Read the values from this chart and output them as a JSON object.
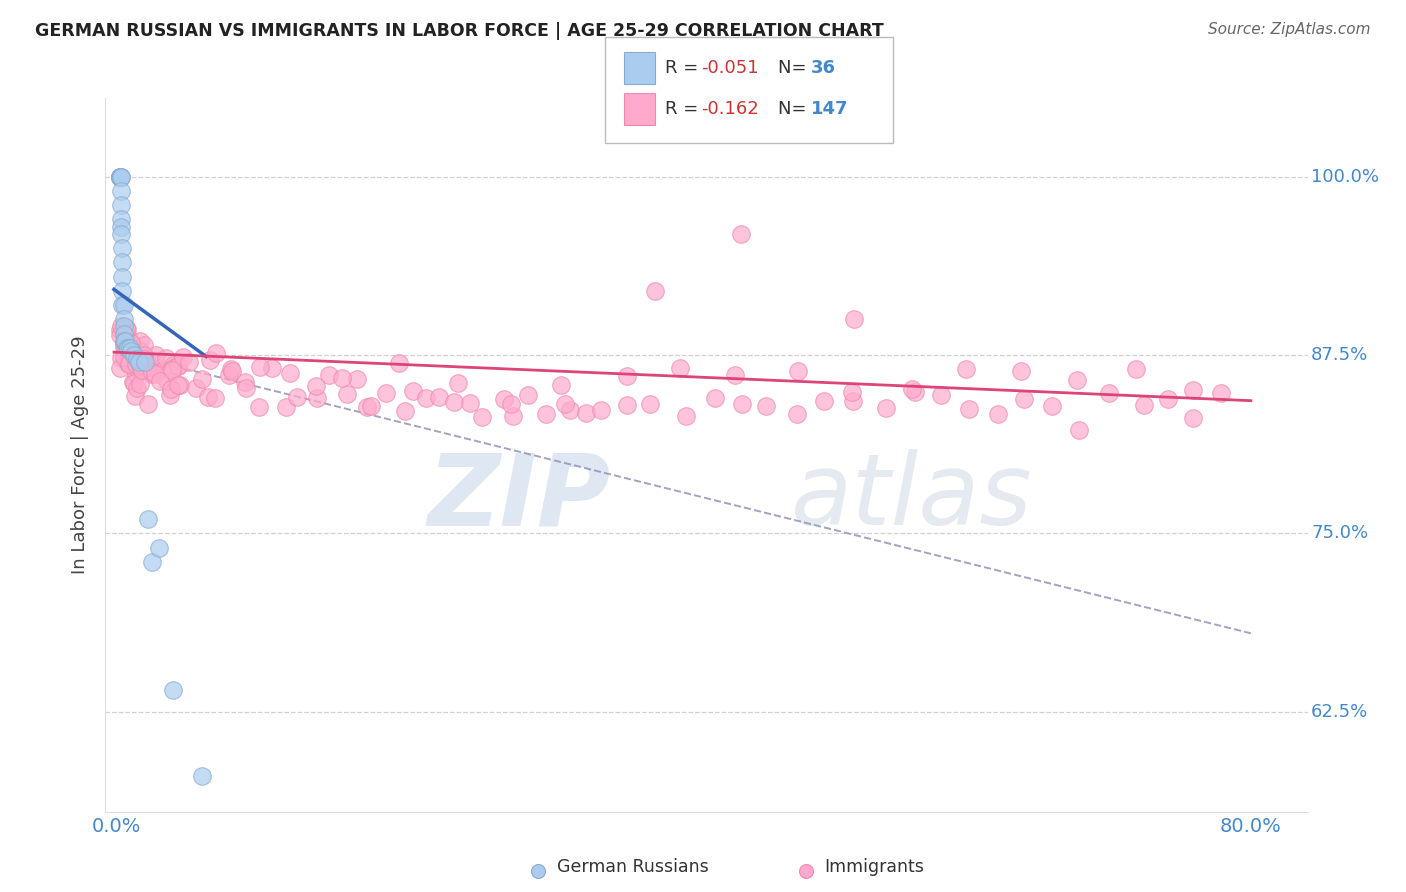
{
  "title": "GERMAN RUSSIAN VS IMMIGRANTS IN LABOR FORCE | AGE 25-29 CORRELATION CHART",
  "source": "Source: ZipAtlas.com",
  "ylabel": "In Labor Force | Age 25-29",
  "ytick_labels": [
    "62.5%",
    "75.0%",
    "87.5%",
    "100.0%"
  ],
  "ytick_values": [
    0.625,
    0.75,
    0.875,
    1.0
  ],
  "xtick_labels": [
    "0.0%",
    "80.0%"
  ],
  "xtick_values": [
    0.0,
    0.8
  ],
  "xlim": [
    -0.008,
    0.84
  ],
  "ylim": [
    0.555,
    1.055
  ],
  "blue_fill_color": "#aaccee",
  "blue_edge_color": "#88aacc",
  "pink_fill_color": "#ffaacc",
  "pink_edge_color": "#ee88aa",
  "blue_line_color": "#3366bb",
  "pink_line_color": "#dd4477",
  "dashed_line_color": "#9999bb",
  "title_color": "#222222",
  "source_color": "#666666",
  "axis_label_color": "#4488cc",
  "background_color": "#ffffff",
  "grid_color": "#cccccc",
  "legend_r1_val": "-0.051",
  "legend_n1_val": "36",
  "legend_r2_val": "-0.162",
  "legend_n2_val": "147",
  "bottom_legend_1": "German Russians",
  "bottom_legend_2": "Immigrants",
  "gr_x": [
    0.002,
    0.002,
    0.002,
    0.002,
    0.002,
    0.003,
    0.003,
    0.003,
    0.003,
    0.003,
    0.003,
    0.003,
    0.004,
    0.004,
    0.004,
    0.004,
    0.004,
    0.005,
    0.005,
    0.005,
    0.005,
    0.005,
    0.006,
    0.007,
    0.008,
    0.009,
    0.01,
    0.012,
    0.014,
    0.016,
    0.02,
    0.022,
    0.025,
    0.03,
    0.04,
    0.06
  ],
  "gr_y": [
    1.0,
    1.0,
    1.0,
    1.0,
    1.0,
    1.0,
    1.0,
    0.99,
    0.98,
    0.97,
    0.965,
    0.96,
    0.95,
    0.94,
    0.93,
    0.92,
    0.91,
    0.91,
    0.9,
    0.895,
    0.89,
    0.885,
    0.885,
    0.88,
    0.88,
    0.88,
    0.878,
    0.875,
    0.872,
    0.87,
    0.87,
    0.76,
    0.73,
    0.74,
    0.64,
    0.58
  ],
  "imm_x": [
    0.002,
    0.003,
    0.003,
    0.004,
    0.004,
    0.005,
    0.005,
    0.006,
    0.006,
    0.007,
    0.007,
    0.008,
    0.008,
    0.009,
    0.009,
    0.01,
    0.01,
    0.011,
    0.011,
    0.012,
    0.013,
    0.013,
    0.014,
    0.015,
    0.015,
    0.016,
    0.017,
    0.018,
    0.019,
    0.02,
    0.021,
    0.022,
    0.023,
    0.025,
    0.026,
    0.028,
    0.03,
    0.032,
    0.034,
    0.036,
    0.038,
    0.04,
    0.042,
    0.045,
    0.048,
    0.05,
    0.055,
    0.06,
    0.065,
    0.07,
    0.075,
    0.08,
    0.09,
    0.1,
    0.11,
    0.12,
    0.13,
    0.14,
    0.15,
    0.16,
    0.17,
    0.18,
    0.19,
    0.2,
    0.21,
    0.22,
    0.23,
    0.24,
    0.25,
    0.26,
    0.27,
    0.28,
    0.29,
    0.3,
    0.31,
    0.32,
    0.33,
    0.34,
    0.36,
    0.38,
    0.4,
    0.42,
    0.44,
    0.46,
    0.48,
    0.5,
    0.52,
    0.54,
    0.56,
    0.58,
    0.6,
    0.62,
    0.64,
    0.66,
    0.68,
    0.7,
    0.72,
    0.74,
    0.76,
    0.78,
    0.005,
    0.006,
    0.007,
    0.008,
    0.009,
    0.01,
    0.011,
    0.012,
    0.013,
    0.014,
    0.015,
    0.016,
    0.017,
    0.018,
    0.02,
    0.022,
    0.025,
    0.028,
    0.032,
    0.035,
    0.04,
    0.045,
    0.05,
    0.06,
    0.07,
    0.08,
    0.09,
    0.1,
    0.12,
    0.14,
    0.16,
    0.18,
    0.2,
    0.24,
    0.28,
    0.32,
    0.36,
    0.4,
    0.44,
    0.48,
    0.52,
    0.56,
    0.6,
    0.64,
    0.68,
    0.72,
    0.76
  ],
  "imm_y": [
    0.89,
    0.895,
    0.885,
    0.89,
    0.88,
    0.885,
    0.875,
    0.88,
    0.87,
    0.882,
    0.872,
    0.878,
    0.868,
    0.882,
    0.872,
    0.878,
    0.868,
    0.876,
    0.866,
    0.874,
    0.88,
    0.87,
    0.876,
    0.88,
    0.87,
    0.876,
    0.87,
    0.874,
    0.868,
    0.874,
    0.868,
    0.872,
    0.866,
    0.87,
    0.864,
    0.868,
    0.865,
    0.872,
    0.862,
    0.868,
    0.862,
    0.868,
    0.858,
    0.865,
    0.86,
    0.865,
    0.858,
    0.862,
    0.855,
    0.86,
    0.856,
    0.858,
    0.855,
    0.852,
    0.858,
    0.85,
    0.856,
    0.848,
    0.855,
    0.845,
    0.852,
    0.842,
    0.85,
    0.845,
    0.852,
    0.84,
    0.848,
    0.838,
    0.846,
    0.836,
    0.844,
    0.834,
    0.842,
    0.832,
    0.84,
    0.838,
    0.836,
    0.845,
    0.84,
    0.835,
    0.838,
    0.845,
    0.835,
    0.84,
    0.838,
    0.835,
    0.842,
    0.835,
    0.84,
    0.838,
    0.84,
    0.838,
    0.842,
    0.84,
    0.838,
    0.838,
    0.84,
    0.838,
    0.84,
    0.838,
    0.9,
    0.895,
    0.89,
    0.875,
    0.885,
    0.87,
    0.865,
    0.855,
    0.86,
    0.85,
    0.86,
    0.855,
    0.87,
    0.862,
    0.858,
    0.855,
    0.86,
    0.85,
    0.856,
    0.855,
    0.862,
    0.858,
    0.865,
    0.858,
    0.865,
    0.86,
    0.858,
    0.862,
    0.855,
    0.858,
    0.862,
    0.858,
    0.862,
    0.86,
    0.858,
    0.855,
    0.862,
    0.86,
    0.862,
    0.86,
    0.858,
    0.862,
    0.858,
    0.86,
    0.858,
    0.855,
    0.858
  ]
}
